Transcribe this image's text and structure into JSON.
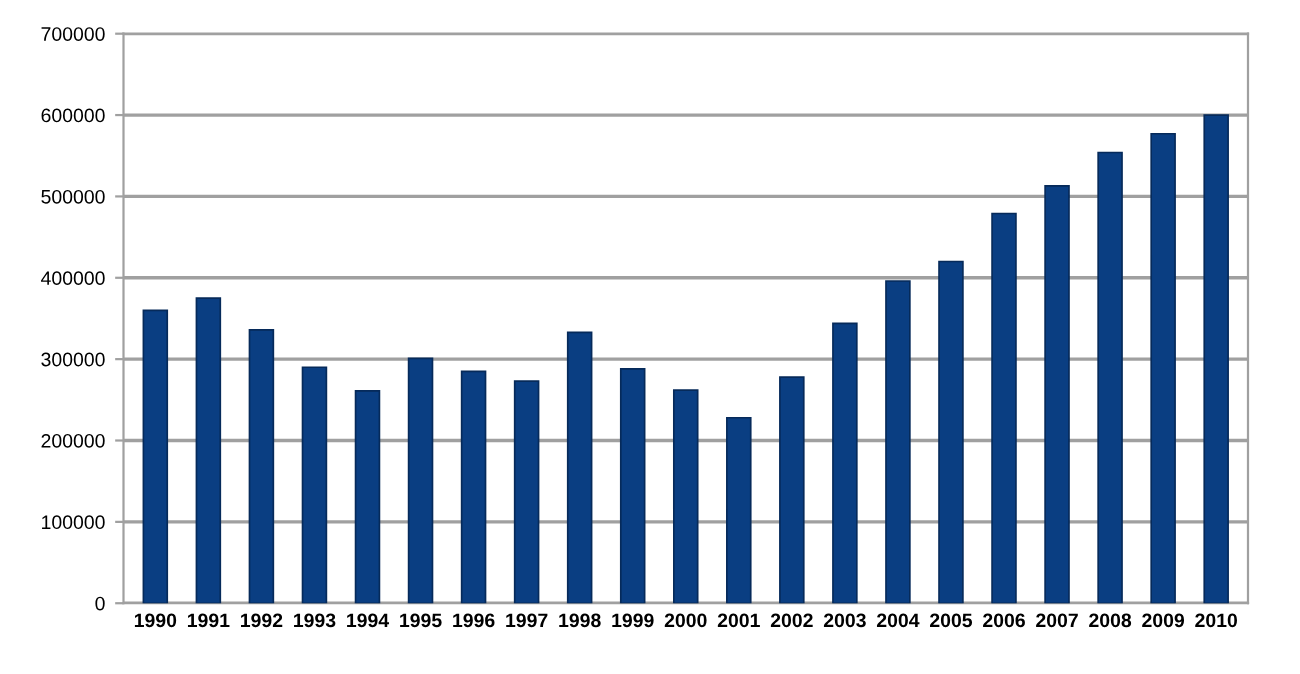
{
  "chart_data": {
    "type": "bar",
    "categories": [
      "1990",
      "1991",
      "1992",
      "1993",
      "1994",
      "1995",
      "1996",
      "1997",
      "1998",
      "1999",
      "2000",
      "2001",
      "2002",
      "2003",
      "2004",
      "2005",
      "2006",
      "2007",
      "2008",
      "2009",
      "2010"
    ],
    "values": [
      360000,
      375000,
      336000,
      290000,
      261000,
      301000,
      285000,
      273000,
      333000,
      288000,
      262000,
      228000,
      278000,
      344000,
      396000,
      420000,
      479000,
      513000,
      554000,
      577000,
      600000
    ],
    "color": "#0a3e82",
    "ylim": [
      0,
      700000
    ],
    "yticks": [
      0,
      100000,
      200000,
      300000,
      400000,
      500000,
      600000,
      700000
    ],
    "grid": "y",
    "legend": false
  }
}
